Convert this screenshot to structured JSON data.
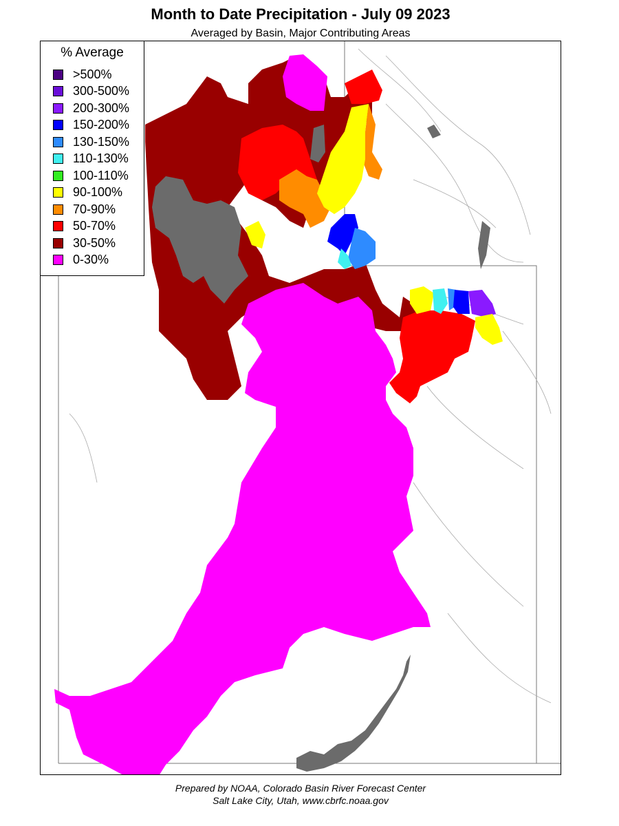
{
  "title": "Month to Date Precipitation - July 09 2023",
  "subtitle": "Averaged by Basin, Major Contributing Areas",
  "legend": {
    "title": "% Average",
    "items": [
      {
        "label": ">500%",
        "color": "#4b0082"
      },
      {
        "label": "300-500%",
        "color": "#6a0ed8"
      },
      {
        "label": "200-300%",
        "color": "#8a1aff"
      },
      {
        "label": "150-200%",
        "color": "#0000ff"
      },
      {
        "label": "130-150%",
        "color": "#2e8bff"
      },
      {
        "label": "110-130%",
        "color": "#40f0f0"
      },
      {
        "label": "100-110%",
        "color": "#33ee22"
      },
      {
        "label": "90-100%",
        "color": "#ffff00"
      },
      {
        "label": "70-90%",
        "color": "#ff8c00"
      },
      {
        "label": "50-70%",
        "color": "#ff0000"
      },
      {
        "label": "30-50%",
        "color": "#990000"
      },
      {
        "label": "0-30%",
        "color": "#ff00ff"
      }
    ]
  },
  "no_data_color": "#6b6b6b",
  "credit": {
    "line1": "Prepared by NOAA, Colorado Basin River Forecast Center",
    "line2": "Salt Lake City, Utah, www.cbrfc.noaa.gov"
  }
}
